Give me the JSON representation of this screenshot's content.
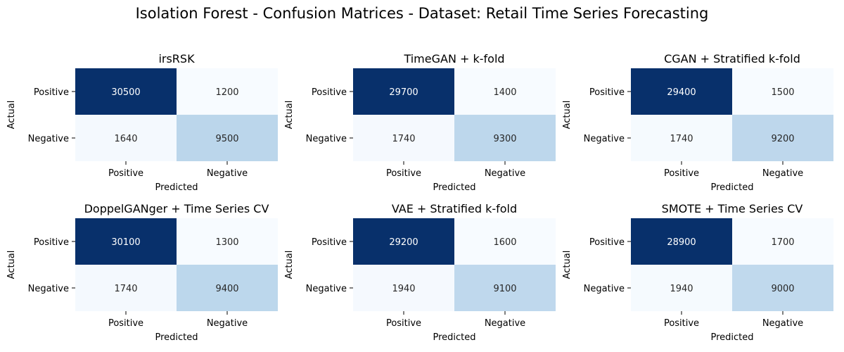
{
  "title": "Isolation Forest - Confusion Matrices - Dataset: Retail Time Series Forecasting",
  "colors": {
    "low": "#f7fbff",
    "high": "#08306b",
    "light_text": "#ffffff",
    "dark_text": "#262626",
    "ink": "#000000"
  },
  "chart_data": [
    {
      "type": "heatmap",
      "title": "irsRSK",
      "xlabel": "Predicted",
      "ylabel": "Actual",
      "x_categories": [
        "Positive",
        "Negative"
      ],
      "y_categories": [
        "Positive",
        "Negative"
      ],
      "matrix": [
        [
          30500,
          1200
        ],
        [
          1640,
          9500
        ]
      ],
      "colorbar": false
    },
    {
      "type": "heatmap",
      "title": "TimeGAN + k-fold",
      "xlabel": "Predicted",
      "ylabel": "Actual",
      "x_categories": [
        "Positive",
        "Negative"
      ],
      "y_categories": [
        "Positive",
        "Negative"
      ],
      "matrix": [
        [
          29700,
          1400
        ],
        [
          1740,
          9300
        ]
      ],
      "colorbar": false
    },
    {
      "type": "heatmap",
      "title": "CGAN + Stratified k-fold",
      "xlabel": "Predicted",
      "ylabel": "Actual",
      "x_categories": [
        "Positive",
        "Negative"
      ],
      "y_categories": [
        "Positive",
        "Negative"
      ],
      "matrix": [
        [
          29400,
          1500
        ],
        [
          1740,
          9200
        ]
      ],
      "colorbar": false
    },
    {
      "type": "heatmap",
      "title": "DoppelGANger + Time Series CV",
      "xlabel": "Predicted",
      "ylabel": "Actual",
      "x_categories": [
        "Positive",
        "Negative"
      ],
      "y_categories": [
        "Positive",
        "Negative"
      ],
      "matrix": [
        [
          30100,
          1300
        ],
        [
          1740,
          9400
        ]
      ],
      "colorbar": false
    },
    {
      "type": "heatmap",
      "title": "VAE + Stratified k-fold",
      "xlabel": "Predicted",
      "ylabel": "Actual",
      "x_categories": [
        "Positive",
        "Negative"
      ],
      "y_categories": [
        "Positive",
        "Negative"
      ],
      "matrix": [
        [
          29200,
          1600
        ],
        [
          1940,
          9100
        ]
      ],
      "colorbar": false
    },
    {
      "type": "heatmap",
      "title": "SMOTE + Time Series CV",
      "xlabel": "Predicted",
      "ylabel": "Actual",
      "x_categories": [
        "Positive",
        "Negative"
      ],
      "y_categories": [
        "Positive",
        "Negative"
      ],
      "matrix": [
        [
          28900,
          1700
        ],
        [
          1940,
          9000
        ]
      ],
      "colorbar": false
    }
  ]
}
